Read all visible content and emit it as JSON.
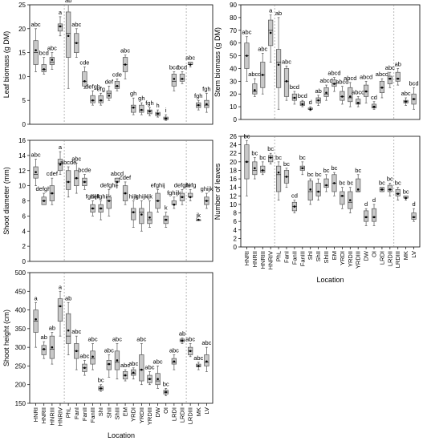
{
  "colors": {
    "box_fill": "#c8c8c8",
    "box_stroke": "#555555",
    "median": "#333333",
    "mean": "#000000",
    "divider": "#888888"
  },
  "locations": [
    "HNRI",
    "HNRII",
    "HNRIII",
    "HNRIV",
    "PhL",
    "FanI",
    "FanII",
    "FanIII",
    "ShI",
    "ShII",
    "ShIII",
    "EM",
    "YRDI",
    "YRDII",
    "YRDIII",
    "DW",
    "OI",
    "LRDI",
    "LRDII",
    "LRDIII",
    "MK",
    "LV"
  ],
  "chart_data": [
    {
      "type": "boxplot",
      "ylabel": "Leaf biomass (g DM)",
      "ylim": [
        0,
        25
      ],
      "yticks": [
        0,
        5,
        10,
        15,
        20,
        25
      ],
      "categories": [
        "HNRI",
        "HNRII",
        "HNRIII",
        "HNRIV",
        "PhL",
        "FanI",
        "FanII",
        "FanIII",
        "ShI",
        "ShII",
        "ShIII",
        "EM",
        "YRDI",
        "YRDII",
        "YRDIII",
        "DW",
        "OI",
        "LRDI",
        "LRDII",
        "LRDIII",
        "MK",
        "LV"
      ],
      "min": [
        11.0,
        10.5,
        11.5,
        18.5,
        7.5,
        14.0,
        7.5,
        4.0,
        4.0,
        5.0,
        7.0,
        9.5,
        2.0,
        2.0,
        1.8,
        1.5,
        0.8,
        7.0,
        8.5,
        12.0,
        3.0,
        2.5
      ],
      "q1": [
        12.5,
        11.0,
        12.5,
        19.5,
        14.0,
        15.0,
        8.0,
        4.5,
        4.5,
        5.5,
        7.5,
        11.0,
        2.5,
        2.5,
        2.2,
        1.8,
        1.0,
        8.0,
        9.0,
        12.5,
        3.5,
        3.5
      ],
      "median": [
        15.0,
        11.5,
        13.0,
        20.5,
        19.0,
        17.0,
        9.0,
        5.0,
        5.0,
        6.5,
        8.0,
        12.5,
        3.5,
        3.0,
        2.8,
        2.2,
        1.2,
        9.0,
        9.5,
        12.5,
        4.0,
        4.0
      ],
      "q3": [
        17.5,
        12.5,
        14.0,
        21.0,
        23.5,
        19.0,
        11.0,
        6.0,
        6.0,
        7.0,
        9.0,
        14.0,
        4.0,
        4.0,
        3.0,
        2.5,
        1.5,
        10.5,
        10.5,
        13.0,
        4.5,
        5.0
      ],
      "max": [
        20.0,
        14.0,
        15.0,
        22.5,
        25.0,
        20.0,
        12.0,
        7.0,
        6.5,
        8.0,
        9.5,
        14.5,
        5.5,
        4.5,
        3.5,
        3.0,
        2.0,
        11.0,
        11.0,
        13.0,
        5.0,
        6.5
      ],
      "mean": [
        15.5,
        11.5,
        13.5,
        20.5,
        18.5,
        17.0,
        9.0,
        5.0,
        5.0,
        6.0,
        8.0,
        12.5,
        3.5,
        3.0,
        2.7,
        2.2,
        1.2,
        9.5,
        9.5,
        12.5,
        4.0,
        4.2
      ],
      "letters": [
        "abc",
        "bcd",
        "abc",
        "a",
        "ab",
        "abc",
        "cde",
        "defgh",
        "efg",
        "def",
        "cde",
        "abc",
        "gh",
        "gh",
        "fgh",
        "h",
        "i",
        "bcd",
        "bcd",
        "abc",
        "fgh",
        "fgh"
      ]
    },
    {
      "type": "boxplot",
      "ylabel": "Stem biomass (g DM)",
      "ylim": [
        0,
        90
      ],
      "yticks": [
        0,
        10,
        20,
        30,
        40,
        50,
        60,
        70,
        80,
        90
      ],
      "categories": [
        "HNRI",
        "HNRII",
        "HNRIII",
        "HNRIV",
        "PhL",
        "FanI",
        "FanII",
        "FanIII",
        "ShI",
        "ShII",
        "ShIII",
        "EM",
        "YRDI",
        "YRDII",
        "YRDIII",
        "DW",
        "OI",
        "LRDI",
        "LRDII",
        "LRDIII",
        "MK",
        "LV"
      ],
      "min": [
        30,
        18,
        20,
        45,
        8,
        15,
        12,
        10,
        7,
        11,
        15,
        22,
        12,
        10,
        10,
        13,
        8,
        17,
        25,
        27,
        11,
        8
      ],
      "q1": [
        40,
        20,
        25,
        58,
        25,
        18,
        15,
        11,
        8,
        13,
        18,
        26,
        15,
        14,
        12,
        18,
        9,
        21,
        28,
        30,
        13,
        12
      ],
      "median": [
        50,
        22,
        35,
        70,
        45,
        30,
        17,
        12,
        8,
        15,
        20,
        28,
        18,
        17,
        13,
        22,
        10,
        25,
        32,
        32,
        14,
        16
      ],
      "q3": [
        60,
        28,
        45,
        78,
        55,
        40,
        20,
        14,
        9,
        17,
        25,
        31,
        22,
        25,
        16,
        27,
        12,
        30,
        34,
        37,
        15,
        20
      ],
      "max": [
        65,
        32,
        52,
        82,
        80,
        42,
        22,
        15,
        10,
        19,
        27,
        33,
        26,
        29,
        18,
        30,
        14,
        32,
        37,
        40,
        17,
        25
      ],
      "mean": [
        50,
        23,
        35,
        68,
        43,
        30,
        17,
        12,
        8,
        15,
        21,
        28,
        18,
        18,
        13,
        22,
        10,
        25,
        32,
        32,
        14,
        16
      ],
      "letters": [
        "abc",
        "abcd",
        "abc",
        "a",
        "ab",
        "abc",
        "bcd",
        "bcd",
        "d",
        "ab",
        "abcd",
        "abcd",
        "abcd",
        "abcd",
        "abcd",
        "abcd",
        "cd",
        "abcd",
        "abc",
        "ab",
        "abc",
        "bcd"
      ]
    },
    {
      "type": "boxplot",
      "ylabel": "Shoot diameter (mm)",
      "ylim": [
        0,
        16
      ],
      "yticks": [
        0,
        2,
        4,
        6,
        8,
        10,
        12,
        14,
        16
      ],
      "categories": [
        "HNRI",
        "HNRII",
        "HNRIII",
        "HNRIV",
        "PhL",
        "FanI",
        "FanII",
        "FanIII",
        "ShI",
        "ShII",
        "ShIII",
        "EM",
        "YRDI",
        "YRDII",
        "YRDIII",
        "DW",
        "OI",
        "LRDI",
        "LRDII",
        "LRDIII",
        "MK",
        "LV"
      ],
      "min": [
        10.0,
        7.5,
        7.5,
        11.5,
        8.5,
        9.0,
        9.5,
        6.0,
        5.5,
        6.0,
        10.0,
        7.5,
        4.5,
        4.0,
        4.5,
        6.5,
        4.5,
        7.0,
        7.5,
        8.0,
        5.5,
        7.0
      ],
      "q1": [
        11.0,
        7.5,
        8.0,
        12.0,
        9.5,
        10.0,
        10.0,
        6.5,
        6.5,
        7.0,
        10.5,
        8.0,
        5.5,
        5.0,
        5.0,
        7.0,
        5.0,
        7.5,
        8.0,
        8.5,
        5.5,
        7.5
      ],
      "median": [
        11.5,
        8.0,
        9.0,
        13.0,
        10.5,
        11.0,
        10.5,
        7.0,
        7.0,
        8.0,
        10.5,
        9.0,
        6.5,
        6.5,
        5.5,
        8.0,
        5.5,
        7.5,
        8.5,
        8.5,
        5.5,
        8.0
      ],
      "q3": [
        12.5,
        8.5,
        10.0,
        13.5,
        12.0,
        12.0,
        11.0,
        7.5,
        7.5,
        8.5,
        11.0,
        10.0,
        7.0,
        7.0,
        6.5,
        9.0,
        6.0,
        8.0,
        9.0,
        9.0,
        5.5,
        8.5
      ],
      "max": [
        13.5,
        9.0,
        11.0,
        14.5,
        12.5,
        13.0,
        11.5,
        8.0,
        8.0,
        9.5,
        11.0,
        10.5,
        8.0,
        8.0,
        8.0,
        9.5,
        6.5,
        8.5,
        9.5,
        9.5,
        5.5,
        9.0
      ],
      "mean": [
        11.8,
        8.0,
        9.0,
        12.8,
        10.5,
        11.0,
        10.5,
        7.0,
        7.0,
        8.0,
        10.5,
        9.0,
        6.5,
        6.2,
        5.8,
        8.0,
        5.5,
        7.5,
        8.5,
        8.5,
        5.5,
        8.0
      ],
      "letters": [
        "abc",
        "defghi",
        "cdef",
        "a",
        "abcde",
        "abc",
        "bcde",
        "fghijk",
        "defghijk",
        "defghij",
        "abcd",
        "cdef",
        "hijk",
        "ghijk",
        "ijk",
        "efghij",
        "k",
        "fghijk",
        "defghi",
        "defg",
        "jk",
        "ghijk"
      ]
    },
    {
      "type": "boxplot",
      "ylabel": "Number of leaves",
      "xlabel": "Location",
      "ylim": [
        0,
        26
      ],
      "yticks": [
        0,
        2,
        4,
        6,
        8,
        10,
        12,
        14,
        16,
        18,
        20,
        22,
        24,
        26
      ],
      "categories": [
        "HNRI",
        "HNRII",
        "HNRIII",
        "HNRIV",
        "PhL",
        "FanI",
        "FanII",
        "FanIII",
        "ShI",
        "ShII",
        "ShIII",
        "EM",
        "YRDI",
        "YRDII",
        "YRDIII",
        "DW",
        "OI",
        "LRDI",
        "LRDII",
        "LRDIII",
        "MK",
        "LV"
      ],
      "min": [
        12,
        16,
        17,
        19.5,
        11,
        14,
        8,
        17,
        10,
        11,
        13,
        12,
        9,
        8,
        13,
        5,
        5,
        13,
        12,
        11,
        11,
        6
      ],
      "q1": [
        16,
        17,
        17.5,
        20,
        13,
        15,
        8.5,
        18,
        11,
        12,
        14,
        13,
        10,
        9,
        13,
        6,
        6,
        13,
        13,
        12,
        11.5,
        6.5
      ],
      "median": [
        20,
        18,
        18,
        21,
        17,
        16.5,
        9.5,
        18.5,
        13,
        13,
        14.5,
        15,
        12,
        10.5,
        13,
        7,
        7,
        13.5,
        13.5,
        12.5,
        11.5,
        7
      ],
      "q3": [
        24,
        20,
        19,
        21.5,
        19,
        18,
        10.5,
        19,
        15.5,
        15,
        16,
        17,
        13,
        13,
        16,
        8.5,
        9,
        14,
        14.5,
        13.5,
        12,
        8
      ],
      "max": [
        25,
        21,
        20,
        22,
        20,
        18.5,
        11,
        20,
        16,
        16,
        17,
        17.5,
        14,
        14,
        17,
        9,
        10,
        14,
        15,
        14,
        12,
        9
      ],
      "mean": [
        20,
        18.5,
        18,
        21,
        17.5,
        16.5,
        9.5,
        18.5,
        13.5,
        13,
        14.5,
        15,
        12,
        11,
        13.5,
        7,
        7,
        13.5,
        13.5,
        12.5,
        11.5,
        7
      ],
      "letters": [
        "bc",
        "bc",
        "bc",
        "bc",
        "bc",
        "bc",
        "cd",
        "bc",
        "bc",
        "bc",
        "bc",
        "bc",
        "bc",
        "bc",
        "bc",
        "d",
        "d",
        "bc",
        "bc",
        "bc",
        "bc",
        "d"
      ]
    },
    {
      "type": "boxplot",
      "ylabel": "Shoot height (cm)",
      "xlabel": "Location",
      "ylim": [
        150,
        500
      ],
      "yticks": [
        150,
        200,
        250,
        300,
        350,
        400,
        450,
        500
      ],
      "categories": [
        "HNRI",
        "HNRII",
        "HNRIII",
        "HNRIV",
        "PhL",
        "FanI",
        "FanII",
        "FanIII",
        "ShI",
        "ShII",
        "ShIII",
        "EM",
        "YRDI",
        "YRDII",
        "YRDIII",
        "DW",
        "OI",
        "LRDI",
        "LRDII",
        "LRDIII",
        "MK",
        "LV"
      ],
      "min": [
        300,
        270,
        255,
        330,
        280,
        240,
        225,
        240,
        182,
        220,
        215,
        210,
        215,
        200,
        200,
        190,
        170,
        240,
        310,
        275,
        240,
        235
      ],
      "q1": [
        340,
        280,
        270,
        370,
        310,
        270,
        235,
        255,
        185,
        240,
        240,
        215,
        225,
        210,
        205,
        200,
        175,
        255,
        315,
        280,
        248,
        250
      ],
      "median": [
        370,
        295,
        295,
        410,
        330,
        290,
        245,
        270,
        190,
        255,
        260,
        225,
        230,
        240,
        215,
        210,
        180,
        260,
        318,
        290,
        250,
        260
      ],
      "q3": [
        400,
        305,
        330,
        430,
        390,
        310,
        255,
        290,
        195,
        265,
        290,
        235,
        240,
        280,
        225,
        230,
        185,
        270,
        322,
        300,
        255,
        280
      ],
      "max": [
        420,
        315,
        340,
        450,
        420,
        330,
        265,
        310,
        200,
        280,
        310,
        240,
        245,
        310,
        235,
        250,
        190,
        280,
        325,
        310,
        260,
        300
      ],
      "mean": [
        375,
        295,
        300,
        410,
        345,
        290,
        245,
        275,
        190,
        255,
        265,
        225,
        232,
        240,
        215,
        215,
        180,
        262,
        318,
        290,
        250,
        262
      ],
      "letters": [
        "a",
        "ab",
        "ab",
        "a",
        "ab",
        "abc",
        "abc",
        "abc",
        "bc",
        "abc",
        "abc",
        "abc",
        "abc",
        "abc",
        "abc",
        "abc",
        "bc",
        "abc",
        "ab",
        "abc",
        "abc",
        "abc"
      ]
    }
  ]
}
